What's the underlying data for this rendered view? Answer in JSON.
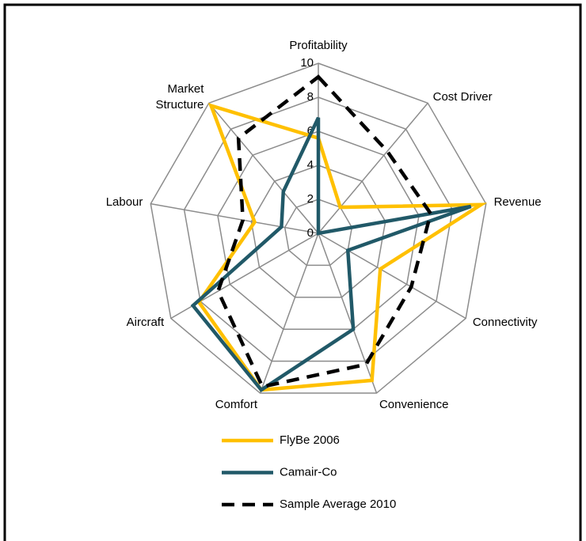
{
  "chart_data": {
    "type": "radar",
    "categories": [
      "Profitability",
      "Cost Driver",
      "Revenue",
      "Connectivity",
      "Convenience",
      "Comfort",
      "Aircraft",
      "Labour",
      "Market Structure"
    ],
    "series": [
      {
        "name": "FlyBe 2006",
        "color": "#ffc000",
        "dash": false,
        "values": [
          5.6,
          2,
          9.7,
          4.2,
          9.2,
          9.8,
          8.1,
          3.8,
          9.8
        ]
      },
      {
        "name": "Camair-Co",
        "color": "#215968",
        "dash": false,
        "values": [
          6.8,
          0,
          9.1,
          2,
          6,
          9.8,
          8.5,
          2.2,
          3.2
        ]
      },
      {
        "name": "Sample Average 2010",
        "color": "#000000",
        "dash": true,
        "values": [
          9.2,
          6.3,
          6.7,
          6.3,
          8.2,
          9.6,
          6.8,
          4.5,
          7.3
        ]
      }
    ],
    "ylim": [
      0,
      10
    ],
    "yticks": [
      0,
      2,
      4,
      6,
      8,
      10
    ],
    "grid": true
  }
}
